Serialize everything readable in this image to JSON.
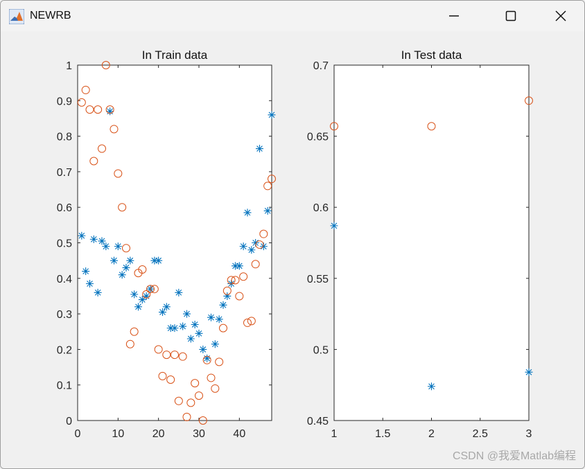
{
  "window": {
    "title": "NEWRB",
    "controls": [
      {
        "name": "minimize-icon"
      },
      {
        "name": "maximize-icon"
      },
      {
        "name": "close-icon"
      }
    ]
  },
  "watermark": "CSDN @我爱Matlab编程",
  "colors": {
    "series_star": "#0072bd",
    "series_circle": "#d95319"
  },
  "chart_data": [
    {
      "type": "scatter",
      "title": "In Train data",
      "xlabel": "",
      "ylabel": "",
      "xlim": [
        0,
        48
      ],
      "ylim": [
        0,
        1
      ],
      "xticks": [
        0,
        10,
        20,
        30,
        40
      ],
      "xtick_labels": [
        "0",
        "10",
        "20",
        "30",
        "40"
      ],
      "yticks": [
        0,
        0.1,
        0.2,
        0.3,
        0.4,
        0.5,
        0.6,
        0.7,
        0.8,
        0.9,
        1
      ],
      "ytick_labels": [
        "0",
        "0.1",
        "0.2",
        "0.3",
        "0.4",
        "0.5",
        "0.6",
        "0.7",
        "0.8",
        "0.9",
        "1"
      ],
      "grid": false,
      "series": [
        {
          "marker": "star",
          "color": "#0072bd",
          "x": [
            1,
            2,
            3,
            4,
            5,
            6,
            7,
            8,
            9,
            10,
            11,
            12,
            13,
            14,
            15,
            16,
            17,
            18,
            19,
            20,
            21,
            22,
            23,
            24,
            25,
            26,
            27,
            28,
            29,
            30,
            31,
            32,
            33,
            34,
            35,
            36,
            37,
            38,
            39,
            40,
            41,
            42,
            43,
            44,
            45,
            46,
            47,
            48
          ],
          "y": [
            0.52,
            0.42,
            0.385,
            0.51,
            0.36,
            0.505,
            0.49,
            0.87,
            0.45,
            0.49,
            0.41,
            0.43,
            0.45,
            0.355,
            0.32,
            0.34,
            0.35,
            0.37,
            0.45,
            0.45,
            0.305,
            0.32,
            0.26,
            0.26,
            0.36,
            0.265,
            0.3,
            0.23,
            0.27,
            0.245,
            0.2,
            0.175,
            0.29,
            0.215,
            0.285,
            0.325,
            0.35,
            0.385,
            0.435,
            0.435,
            0.49,
            0.585,
            0.48,
            0.5,
            0.765,
            0.49,
            0.59,
            0.86
          ]
        },
        {
          "marker": "circle",
          "color": "#d95319",
          "x": [
            1,
            2,
            3,
            4,
            5,
            6,
            7,
            8,
            9,
            10,
            11,
            12,
            13,
            14,
            15,
            16,
            17,
            18,
            19,
            20,
            21,
            22,
            23,
            24,
            25,
            26,
            27,
            28,
            29,
            30,
            31,
            32,
            33,
            34,
            35,
            36,
            37,
            38,
            39,
            40,
            41,
            42,
            43,
            44,
            45,
            46,
            47,
            48
          ],
          "y": [
            0.895,
            0.93,
            0.875,
            0.73,
            0.875,
            0.765,
            1.0,
            0.875,
            0.82,
            0.695,
            0.6,
            0.485,
            0.215,
            0.25,
            0.415,
            0.425,
            0.355,
            0.37,
            0.37,
            0.2,
            0.125,
            0.185,
            0.115,
            0.185,
            0.055,
            0.18,
            0.01,
            0.05,
            0.105,
            0.07,
            0.0,
            0.17,
            0.12,
            0.09,
            0.165,
            0.26,
            0.365,
            0.395,
            0.395,
            0.35,
            0.405,
            0.275,
            0.28,
            0.44,
            0.495,
            0.525,
            0.66,
            0.68
          ]
        }
      ]
    },
    {
      "type": "scatter",
      "title": "In Test data",
      "xlabel": "",
      "ylabel": "",
      "xlim": [
        1,
        3
      ],
      "ylim": [
        0.45,
        0.7
      ],
      "xticks": [
        1,
        1.5,
        2,
        2.5,
        3
      ],
      "xtick_labels": [
        "1",
        "1.5",
        "2",
        "2.5",
        "3"
      ],
      "yticks": [
        0.45,
        0.5,
        0.55,
        0.6,
        0.65,
        0.7
      ],
      "ytick_labels": [
        "0.45",
        "0.5",
        "0.55",
        "0.6",
        "0.65",
        "0.7"
      ],
      "grid": false,
      "series": [
        {
          "marker": "star",
          "color": "#0072bd",
          "x": [
            1,
            2,
            3
          ],
          "y": [
            0.587,
            0.474,
            0.484
          ]
        },
        {
          "marker": "circle",
          "color": "#d95319",
          "x": [
            1,
            2,
            3
          ],
          "y": [
            0.657,
            0.657,
            0.675
          ]
        }
      ]
    }
  ]
}
